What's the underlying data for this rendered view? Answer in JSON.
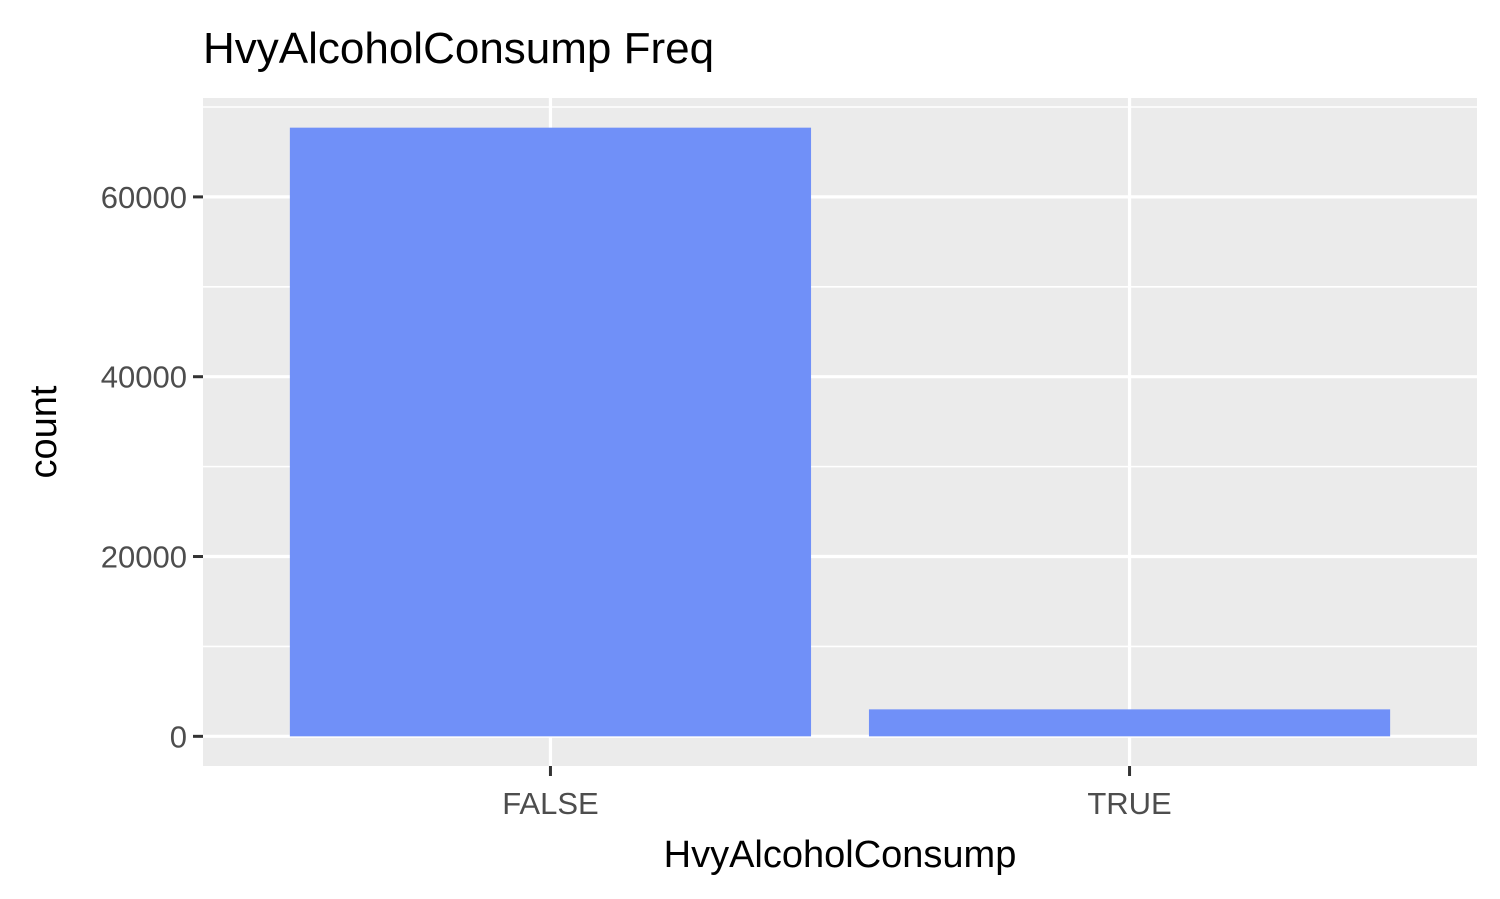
{
  "chart_data": {
    "type": "bar",
    "title": "HvyAlcoholConsump Freq",
    "xlabel": "HvyAlcoholConsump",
    "ylabel": "count",
    "categories": [
      "FALSE",
      "TRUE"
    ],
    "values": [
      67700,
      3000
    ],
    "ylim": [
      -3300,
      71000
    ],
    "yticks": [
      0,
      20000,
      40000,
      60000
    ],
    "ytick_labels": [
      "0",
      "20000",
      "40000",
      "60000"
    ],
    "grid": true,
    "legend": "none",
    "colors": {
      "bar": "#7090f8",
      "panel": "#ebebeb",
      "grid": "#ffffff",
      "tick_text": "#4d4d4d",
      "axis_text": "#000000"
    }
  }
}
